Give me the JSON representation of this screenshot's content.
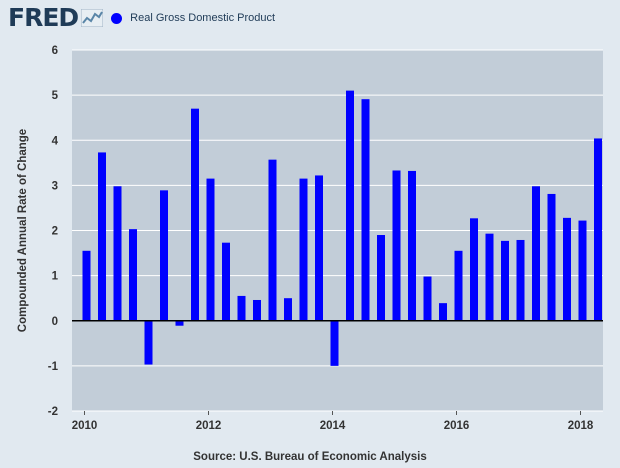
{
  "header": {
    "logo_text": "FRED",
    "legend_label": "Real Gross Domestic Product",
    "legend_color": "#0000ff"
  },
  "source": "Source: U.S. Bureau of Economic Analysis",
  "chart_data": {
    "type": "bar",
    "title": "",
    "xlabel": "",
    "ylabel": "Compounded Annual Rate of Change",
    "ylim": [
      -2,
      6
    ],
    "yticks": [
      -2,
      -1,
      0,
      1,
      2,
      3,
      4,
      5,
      6
    ],
    "xticks": [
      "2010",
      "2012",
      "2014",
      "2016",
      "2018"
    ],
    "grid": "horizontal",
    "bar_color": "#0000ff",
    "background": "#e1e9f0",
    "plot_background": "#c2cdd8",
    "grid_color": "#ffffff",
    "series": [
      {
        "name": "Real Gross Domestic Product",
        "x": [
          "2010-Q1",
          "2010-Q2",
          "2010-Q3",
          "2010-Q4",
          "2011-Q1",
          "2011-Q2",
          "2011-Q3",
          "2011-Q4",
          "2012-Q1",
          "2012-Q2",
          "2012-Q3",
          "2012-Q4",
          "2013-Q1",
          "2013-Q2",
          "2013-Q3",
          "2013-Q4",
          "2014-Q1",
          "2014-Q2",
          "2014-Q3",
          "2014-Q4",
          "2015-Q1",
          "2015-Q2",
          "2015-Q3",
          "2015-Q4",
          "2016-Q1",
          "2016-Q2",
          "2016-Q3",
          "2016-Q4",
          "2017-Q1",
          "2017-Q2",
          "2017-Q3",
          "2017-Q4",
          "2018-Q1",
          "2018-Q2"
        ],
        "values": [
          1.55,
          3.73,
          2.98,
          2.03,
          -0.97,
          2.89,
          -0.11,
          4.7,
          3.15,
          1.73,
          0.55,
          0.46,
          3.57,
          0.5,
          3.15,
          3.22,
          -1.0,
          5.1,
          4.91,
          1.9,
          3.33,
          3.32,
          0.98,
          0.39,
          1.55,
          2.27,
          1.93,
          1.77,
          1.79,
          2.98,
          2.81,
          2.28,
          2.22,
          4.04
        ]
      }
    ]
  }
}
